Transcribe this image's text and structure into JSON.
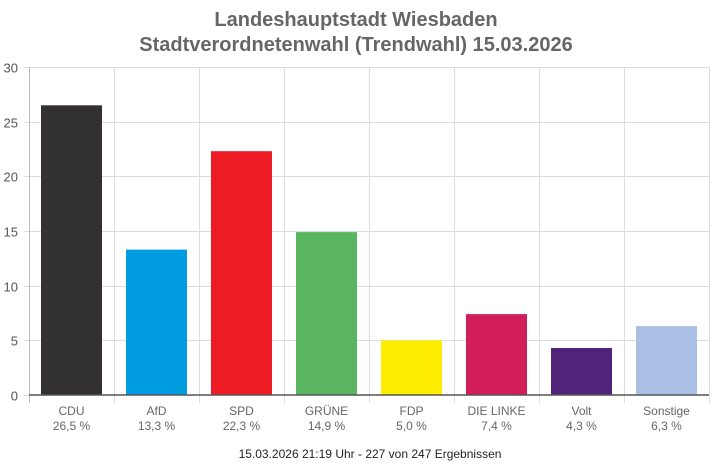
{
  "chart_data": {
    "type": "bar",
    "title": "Landeshauptstadt Wiesbaden",
    "subtitle": "Stadtverordnetenwahl (Trendwahl) 15.03.2026",
    "categories": [
      "CDU",
      "AfD",
      "SPD",
      "GRÜNE",
      "FDP",
      "DIE LINKE",
      "Volt",
      "Sonstige"
    ],
    "values": [
      26.5,
      13.3,
      22.3,
      14.9,
      5.0,
      7.4,
      4.3,
      6.3
    ],
    "value_labels": [
      "26,5 %",
      "13,3 %",
      "22,3 %",
      "14,9 %",
      "5,0 %",
      "7,4 %",
      "4,3 %",
      "6,3 %"
    ],
    "colors": [
      "#323031",
      "#009ee0",
      "#ed1c24",
      "#59b560",
      "#ffed00",
      "#d11d5a",
      "#512379",
      "#abbee4"
    ],
    "ylim": [
      0,
      30
    ],
    "yticks": [
      "0",
      "5",
      "10",
      "15",
      "20",
      "25",
      "30"
    ],
    "ytick_values": [
      0,
      5,
      10,
      15,
      20,
      25,
      30
    ],
    "xlabel": "",
    "ylabel": "",
    "grid": true,
    "legend": "none"
  },
  "footer": "15.03.2026 21:19 Uhr - 227 von 247 Ergebnissen"
}
